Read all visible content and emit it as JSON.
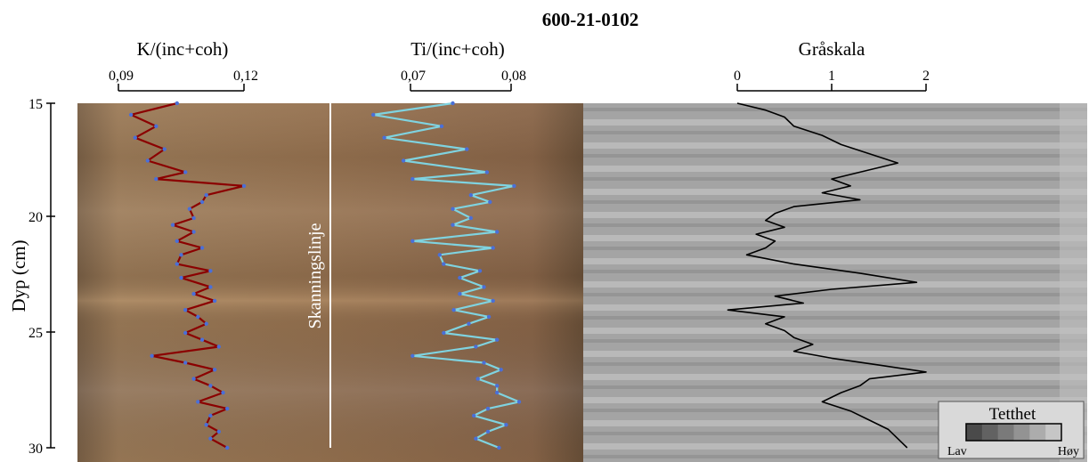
{
  "title": "600-21-0102",
  "ylabel": "Dyp (cm)",
  "depth_ticks": [
    "15",
    "20",
    "25",
    "30"
  ],
  "scanline_label": "Skanningslinje",
  "legend": {
    "title": "Tetthet",
    "low": "Lav",
    "high": "Høy",
    "shades": [
      "#4a4a4a",
      "#626262",
      "#7a7a7a",
      "#939393",
      "#acacac",
      "#c6c6c6"
    ]
  },
  "colors": {
    "k_line": "#8b0000",
    "ti_line": "#7fd3e0",
    "point": "#4a6fd8",
    "gray_line": "#000000"
  },
  "chart_data": [
    {
      "type": "line",
      "title": "K/(inc+coh)",
      "orientation": "vertical",
      "xlim": [
        0.09,
        0.12
      ],
      "xticks": [
        "0,09",
        "0,12"
      ],
      "ylim": [
        15,
        30
      ],
      "series": [
        {
          "depth": [
            15.0,
            15.5,
            16.0,
            16.5,
            17.0,
            17.5,
            18.0,
            18.3,
            18.6,
            19.0,
            19.3,
            19.6,
            20.0,
            20.3,
            20.6,
            21.0,
            21.3,
            21.6,
            22.0,
            22.3,
            22.6,
            23.0,
            23.3,
            23.6,
            24.0,
            24.3,
            24.6,
            25.0,
            25.3,
            25.6,
            26.0,
            26.3,
            26.6,
            27.0,
            27.3,
            27.6,
            28.0,
            28.3,
            28.6,
            29.0,
            29.3,
            29.6,
            30.0
          ],
          "values": [
            0.104,
            0.093,
            0.099,
            0.094,
            0.101,
            0.097,
            0.106,
            0.099,
            0.12,
            0.111,
            0.11,
            0.107,
            0.108,
            0.103,
            0.108,
            0.104,
            0.11,
            0.105,
            0.104,
            0.112,
            0.105,
            0.112,
            0.108,
            0.113,
            0.106,
            0.109,
            0.111,
            0.106,
            0.11,
            0.114,
            0.098,
            0.106,
            0.113,
            0.108,
            0.112,
            0.115,
            0.109,
            0.116,
            0.112,
            0.111,
            0.114,
            0.112,
            0.116
          ]
        }
      ]
    },
    {
      "type": "line",
      "title": "Ti/(inc+coh)",
      "orientation": "vertical",
      "xlim": [
        0.07,
        0.08
      ],
      "xticks": [
        "0,07",
        "0,08"
      ],
      "ylim": [
        15,
        30
      ],
      "series": [
        {
          "depth": [
            15.0,
            15.5,
            16.0,
            16.5,
            17.0,
            17.5,
            18.0,
            18.3,
            18.6,
            19.0,
            19.3,
            19.6,
            20.0,
            20.3,
            20.6,
            21.0,
            21.3,
            21.6,
            22.0,
            22.3,
            22.6,
            23.0,
            23.3,
            23.6,
            24.0,
            24.3,
            24.6,
            25.0,
            25.3,
            25.6,
            26.0,
            26.3,
            26.6,
            27.0,
            27.3,
            27.6,
            28.0,
            28.3,
            28.6,
            29.0,
            29.3,
            29.6,
            30.0
          ],
          "values": [
            0.0742,
            0.0663,
            0.0731,
            0.0674,
            0.0756,
            0.0693,
            0.0776,
            0.0702,
            0.0803,
            0.076,
            0.0779,
            0.0742,
            0.076,
            0.0742,
            0.0786,
            0.0702,
            0.0782,
            0.0729,
            0.0733,
            0.0769,
            0.0749,
            0.0773,
            0.0749,
            0.0782,
            0.0743,
            0.0778,
            0.0758,
            0.0733,
            0.0786,
            0.0765,
            0.0702,
            0.0773,
            0.079,
            0.0767,
            0.0786,
            0.0786,
            0.0808,
            0.0777,
            0.0763,
            0.0795,
            0.0777,
            0.0765,
            0.0788
          ]
        }
      ]
    },
    {
      "type": "line",
      "title": "Gråskala",
      "orientation": "vertical",
      "xlim": [
        0,
        2
      ],
      "xticks": [
        "0",
        "1",
        "2"
      ],
      "ylim": [
        15,
        30
      ],
      "series": [
        {
          "depth": [
            15.0,
            15.3,
            15.6,
            16.0,
            16.4,
            16.8,
            17.2,
            17.6,
            18.0,
            18.3,
            18.6,
            18.9,
            19.2,
            19.5,
            19.8,
            20.1,
            20.4,
            20.7,
            21.0,
            21.3,
            21.6,
            22.0,
            22.4,
            22.8,
            23.1,
            23.4,
            23.7,
            24.0,
            24.3,
            24.6,
            24.9,
            25.2,
            25.5,
            25.8,
            26.1,
            26.4,
            26.7,
            27.0,
            27.3,
            27.6,
            28.0,
            28.4,
            28.8,
            29.2,
            29.6,
            30.0
          ],
          "values": [
            0.0,
            0.3,
            0.5,
            0.6,
            0.9,
            1.1,
            1.4,
            1.7,
            1.3,
            1.0,
            1.2,
            0.9,
            1.3,
            0.6,
            0.4,
            0.3,
            0.5,
            0.2,
            0.4,
            0.3,
            0.1,
            0.6,
            1.3,
            1.9,
            1.0,
            0.4,
            0.7,
            -0.1,
            0.5,
            0.3,
            0.5,
            0.6,
            0.8,
            0.6,
            1.0,
            1.5,
            2.0,
            1.4,
            1.3,
            1.1,
            0.9,
            1.2,
            1.4,
            1.6,
            1.7,
            1.8
          ]
        }
      ]
    }
  ]
}
